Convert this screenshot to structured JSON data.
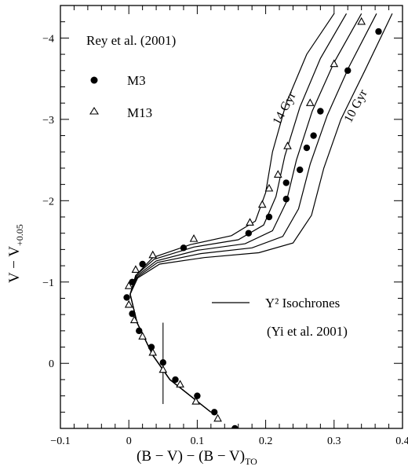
{
  "chart_data": {
    "type": "scatter",
    "title": "",
    "xlabel": {
      "main": "(B − V) − (B − V)",
      "sub": "TO"
    },
    "ylabel": {
      "main": "V − V",
      "sub": "+0.05"
    },
    "xlim": [
      -0.1,
      0.4
    ],
    "ylim": [
      0.8,
      -4.4
    ],
    "x_ticks": [
      -0.1,
      0,
      0.1,
      0.2,
      0.3,
      0.4
    ],
    "x_tick_labels": [
      "−0.1",
      "0",
      "0.1",
      "0.2",
      "0.3",
      "0.4"
    ],
    "y_ticks": [
      0,
      -1,
      -2,
      -3,
      -4
    ],
    "y_tick_labels": [
      "0",
      "−1",
      "−2",
      "−3",
      "−4"
    ],
    "grid": false,
    "legend": {
      "title": "Rey et al. (2001)",
      "entries": [
        {
          "label": "M3",
          "marker": "filled-circle"
        },
        {
          "label": "M13",
          "marker": "open-triangle"
        }
      ]
    },
    "isochrone_legend": {
      "label": "Y² Isochrones",
      "citation": "(Yi et al. 2001)"
    },
    "annotations": [
      {
        "text": "14 Gyr",
        "x": 0.26,
        "y": -3.3
      },
      {
        "text": "10 Gyr",
        "x": 0.37,
        "y": -3.0
      }
    ],
    "series": [
      {
        "name": "M3",
        "marker": "filled-circle",
        "points": [
          [
            0.365,
            -4.08
          ],
          [
            0.32,
            -3.6
          ],
          [
            0.28,
            -3.1
          ],
          [
            0.27,
            -2.8
          ],
          [
            0.26,
            -2.65
          ],
          [
            0.25,
            -2.38
          ],
          [
            0.23,
            -2.22
          ],
          [
            0.23,
            -2.02
          ],
          [
            0.205,
            -1.8
          ],
          [
            0.175,
            -1.6
          ],
          [
            0.08,
            -1.42
          ],
          [
            0.02,
            -1.22
          ],
          [
            0.005,
            -1.0
          ],
          [
            -0.003,
            -0.81
          ],
          [
            0.005,
            -0.61
          ],
          [
            0.015,
            -0.4
          ],
          [
            0.033,
            -0.2
          ],
          [
            0.05,
            -0.01
          ],
          [
            0.068,
            0.2
          ],
          [
            0.1,
            0.4
          ],
          [
            0.125,
            0.6
          ],
          [
            0.155,
            0.8
          ]
        ]
      },
      {
        "name": "M13",
        "marker": "open-triangle",
        "points": [
          [
            0.34,
            -4.2
          ],
          [
            0.3,
            -3.68
          ],
          [
            0.265,
            -3.2
          ],
          [
            0.232,
            -2.67
          ],
          [
            0.218,
            -2.32
          ],
          [
            0.205,
            -2.15
          ],
          [
            0.195,
            -1.95
          ],
          [
            0.177,
            -1.73
          ],
          [
            0.095,
            -1.53
          ],
          [
            0.035,
            -1.33
          ],
          [
            0.01,
            -1.15
          ],
          [
            0.0,
            -0.95
          ],
          [
            0.0,
            -0.72
          ],
          [
            0.008,
            -0.53
          ],
          [
            0.02,
            -0.33
          ],
          [
            0.035,
            -0.13
          ],
          [
            0.05,
            0.08
          ],
          [
            0.075,
            0.26
          ],
          [
            0.098,
            0.47
          ],
          [
            0.13,
            0.68
          ]
        ]
      }
    ],
    "isochrones": [
      {
        "age": "14 Gyr",
        "points": [
          [
            0.12,
            0.6
          ],
          [
            0.06,
            0.2
          ],
          [
            0.035,
            -0.1
          ],
          [
            0.012,
            -0.5
          ],
          [
            0.002,
            -0.85
          ],
          [
            0.01,
            -1.08
          ],
          [
            0.035,
            -1.3
          ],
          [
            0.09,
            -1.46
          ],
          [
            0.15,
            -1.57
          ],
          [
            0.185,
            -1.75
          ],
          [
            0.2,
            -2.1
          ],
          [
            0.21,
            -2.6
          ],
          [
            0.23,
            -3.2
          ],
          [
            0.26,
            -3.8
          ],
          [
            0.3,
            -4.3
          ]
        ]
      },
      {
        "age": "",
        "points": [
          [
            0.12,
            0.6
          ],
          [
            0.06,
            0.2
          ],
          [
            0.035,
            -0.1
          ],
          [
            0.012,
            -0.5
          ],
          [
            0.002,
            -0.85
          ],
          [
            0.01,
            -1.08
          ],
          [
            0.037,
            -1.28
          ],
          [
            0.095,
            -1.43
          ],
          [
            0.16,
            -1.52
          ],
          [
            0.197,
            -1.7
          ],
          [
            0.215,
            -2.05
          ],
          [
            0.228,
            -2.55
          ],
          [
            0.25,
            -3.15
          ],
          [
            0.28,
            -3.75
          ],
          [
            0.318,
            -4.3
          ]
        ]
      },
      {
        "age": "",
        "points": [
          [
            0.12,
            0.6
          ],
          [
            0.06,
            0.2
          ],
          [
            0.035,
            -0.1
          ],
          [
            0.012,
            -0.5
          ],
          [
            0.002,
            -0.85
          ],
          [
            0.011,
            -1.07
          ],
          [
            0.04,
            -1.26
          ],
          [
            0.1,
            -1.39
          ],
          [
            0.17,
            -1.47
          ],
          [
            0.21,
            -1.63
          ],
          [
            0.23,
            -1.98
          ],
          [
            0.245,
            -2.5
          ],
          [
            0.268,
            -3.1
          ],
          [
            0.3,
            -3.7
          ],
          [
            0.34,
            -4.3
          ]
        ]
      },
      {
        "age": "",
        "points": [
          [
            0.12,
            0.6
          ],
          [
            0.06,
            0.2
          ],
          [
            0.035,
            -0.1
          ],
          [
            0.012,
            -0.5
          ],
          [
            0.002,
            -0.85
          ],
          [
            0.012,
            -1.06
          ],
          [
            0.042,
            -1.24
          ],
          [
            0.105,
            -1.35
          ],
          [
            0.18,
            -1.42
          ],
          [
            0.225,
            -1.56
          ],
          [
            0.248,
            -1.9
          ],
          [
            0.265,
            -2.45
          ],
          [
            0.29,
            -3.05
          ],
          [
            0.322,
            -3.65
          ],
          [
            0.362,
            -4.3
          ]
        ]
      },
      {
        "age": "10 Gyr",
        "points": [
          [
            0.12,
            0.6
          ],
          [
            0.06,
            0.2
          ],
          [
            0.035,
            -0.1
          ],
          [
            0.012,
            -0.5
          ],
          [
            0.002,
            -0.85
          ],
          [
            0.013,
            -1.05
          ],
          [
            0.045,
            -1.22
          ],
          [
            0.11,
            -1.3
          ],
          [
            0.19,
            -1.36
          ],
          [
            0.24,
            -1.48
          ],
          [
            0.267,
            -1.82
          ],
          [
            0.285,
            -2.4
          ],
          [
            0.31,
            -3.0
          ],
          [
            0.345,
            -3.6
          ],
          [
            0.385,
            -4.3
          ]
        ]
      }
    ],
    "error_bar": {
      "x": 0.05,
      "y_low": 0.5,
      "y_high": -0.5
    }
  }
}
